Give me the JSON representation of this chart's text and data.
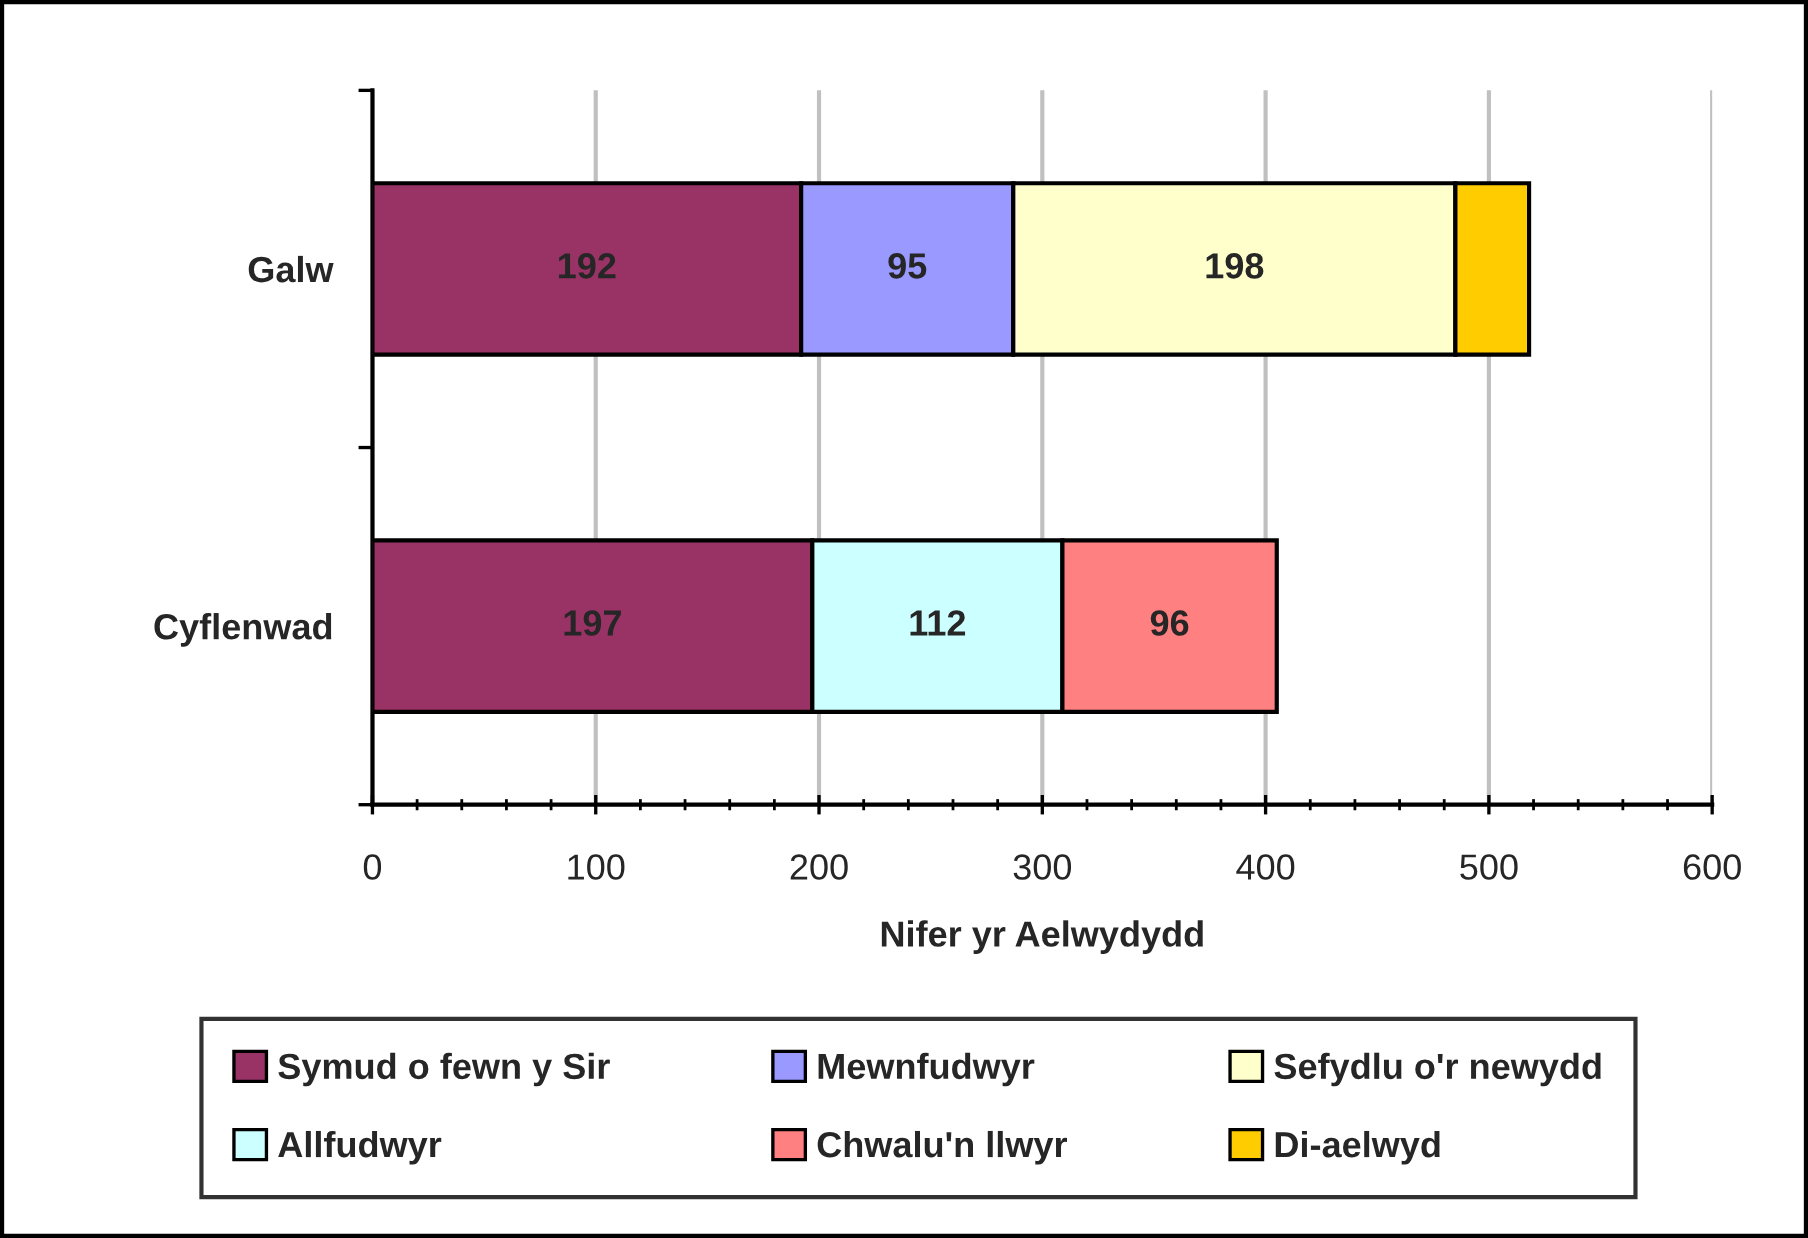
{
  "chart_data": {
    "type": "bar",
    "orientation": "horizontal",
    "stacked": true,
    "categories": [
      "Galw",
      "Cyflenwad"
    ],
    "xlabel": "Nifer yr Aelwydydd",
    "xlim": [
      0,
      600
    ],
    "xticks": [
      0,
      100,
      200,
      300,
      400,
      500,
      600
    ],
    "grid": "x",
    "legend": "bottom",
    "series": [
      {
        "name": "Symud o fewn y Sir",
        "color": "#993366",
        "values": [
          192,
          197
        ],
        "value_labels": [
          "192",
          "197"
        ]
      },
      {
        "name": "Mewnfudwyr",
        "color": "#9999ff",
        "values": [
          95,
          null
        ],
        "value_labels": [
          "95",
          null
        ]
      },
      {
        "name": "Sefydlu o'r newydd",
        "color": "#ffffcc",
        "values": [
          198,
          null
        ],
        "value_labels": [
          "198",
          null
        ]
      },
      {
        "name": "Allfudwyr",
        "color": "#ccffff",
        "values": [
          null,
          112
        ],
        "value_labels": [
          null,
          "112"
        ]
      },
      {
        "name": "Chwalu'n llwyr",
        "color": "#ff8080",
        "values": [
          null,
          96
        ],
        "value_labels": [
          null,
          "96"
        ]
      },
      {
        "name": "Di-aelwyd",
        "color": "#ffcc00",
        "values": [
          33,
          null
        ],
        "value_labels": [
          null,
          null
        ]
      }
    ]
  }
}
